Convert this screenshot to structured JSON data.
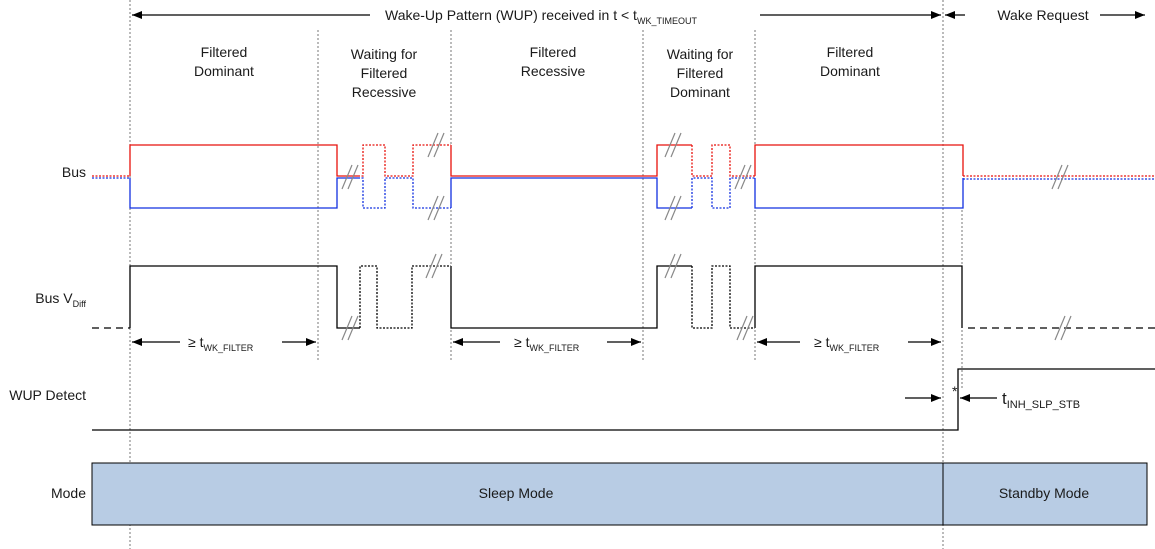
{
  "header": {
    "wup_label": "Wake-Up Pattern (WUP) received in t < t",
    "wup_sub": "WK_TIMEOUT",
    "wake_request": "Wake Request"
  },
  "phases": [
    {
      "line1": "Filtered",
      "line2": "Dominant"
    },
    {
      "line1": "Waiting for",
      "line2": "Filtered",
      "line3": "Recessive"
    },
    {
      "line1": "Filtered",
      "line2": "Recessive"
    },
    {
      "line1": "Waiting for",
      "line2": "Filtered",
      "line3": "Dominant"
    },
    {
      "line1": "Filtered",
      "line2": "Dominant"
    }
  ],
  "rows": {
    "bus": "Bus",
    "vdiff": "Bus V",
    "vdiff_sub": "Diff",
    "wup_detect": "WUP Detect",
    "mode": "Mode"
  },
  "filter_label": {
    "prefix": "≥ t",
    "sub": "WK_FILTER"
  },
  "inh": {
    "main": "t",
    "sub": "INH_SLP_STB",
    "asterisk": "*"
  },
  "modes": {
    "sleep": "Sleep Mode",
    "standby": "Standby Mode"
  },
  "colors": {
    "canh": "#e8120c",
    "canl": "#1230e0",
    "mode_fill": "#b8cce4"
  }
}
